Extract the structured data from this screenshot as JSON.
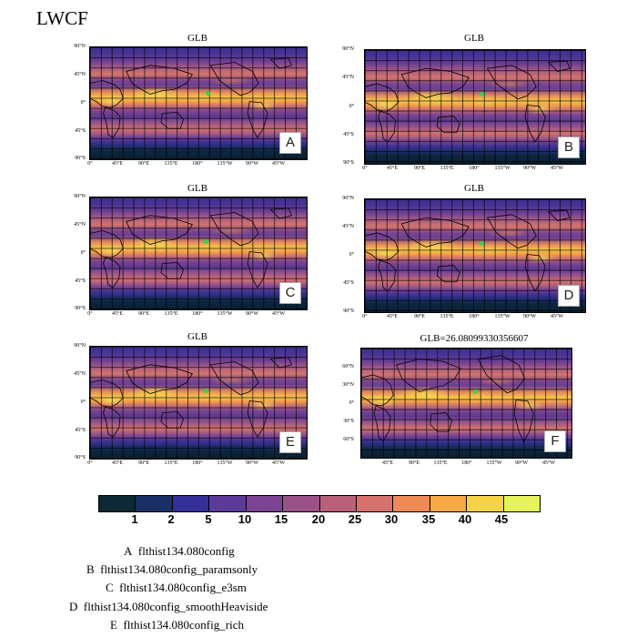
{
  "title": "LWCF",
  "panels": [
    {
      "id": "A",
      "title": "GLB",
      "badge": "A"
    },
    {
      "id": "B",
      "title": "GLB",
      "badge": "B"
    },
    {
      "id": "C",
      "title": "GLB",
      "badge": "C"
    },
    {
      "id": "D",
      "title": "GLB",
      "badge": "D"
    },
    {
      "id": "E",
      "title": "GLB",
      "badge": "E"
    },
    {
      "id": "F",
      "title": "GLB=26.08099330356607",
      "badge": "F"
    }
  ],
  "axes_standard": {
    "y_ticks": [
      "90°N",
      "45°N",
      "0°",
      "45°S",
      "90°S"
    ],
    "x_ticks": [
      "0°",
      "45°E",
      "90°E",
      "135°E",
      "180°",
      "135°W",
      "90°W",
      "45°W"
    ]
  },
  "axes_panel_f": {
    "y_ticks": [
      "60°N",
      "30°N",
      "0°",
      "30°S",
      "60°S"
    ],
    "x_ticks": [
      "45°E",
      "90°E",
      "135°E",
      "180°",
      "135°W",
      "90°W",
      "45°W"
    ]
  },
  "colorbar": {
    "labels": [
      "1",
      "2",
      "5",
      "10",
      "15",
      "20",
      "25",
      "30",
      "35",
      "40",
      "45"
    ],
    "colors": [
      "#0b2a33",
      "#1a2f66",
      "#34309a",
      "#5b3a98",
      "#7c4492",
      "#9a5388",
      "#b8607c",
      "#d6726c",
      "#ee8a56",
      "#f8a845",
      "#f5d246",
      "#e6f45c"
    ]
  },
  "legend": [
    {
      "letter": "A",
      "name": "flthist134.080config"
    },
    {
      "letter": "B",
      "name": "flthist134.080config_paramsonly"
    },
    {
      "letter": "C",
      "name": "flthist134.080config_e3sm"
    },
    {
      "letter": "D",
      "name": "flthist134.080config_smoothHeaviside"
    },
    {
      "letter": "E",
      "name": "flthist134.080config_rich"
    }
  ]
}
